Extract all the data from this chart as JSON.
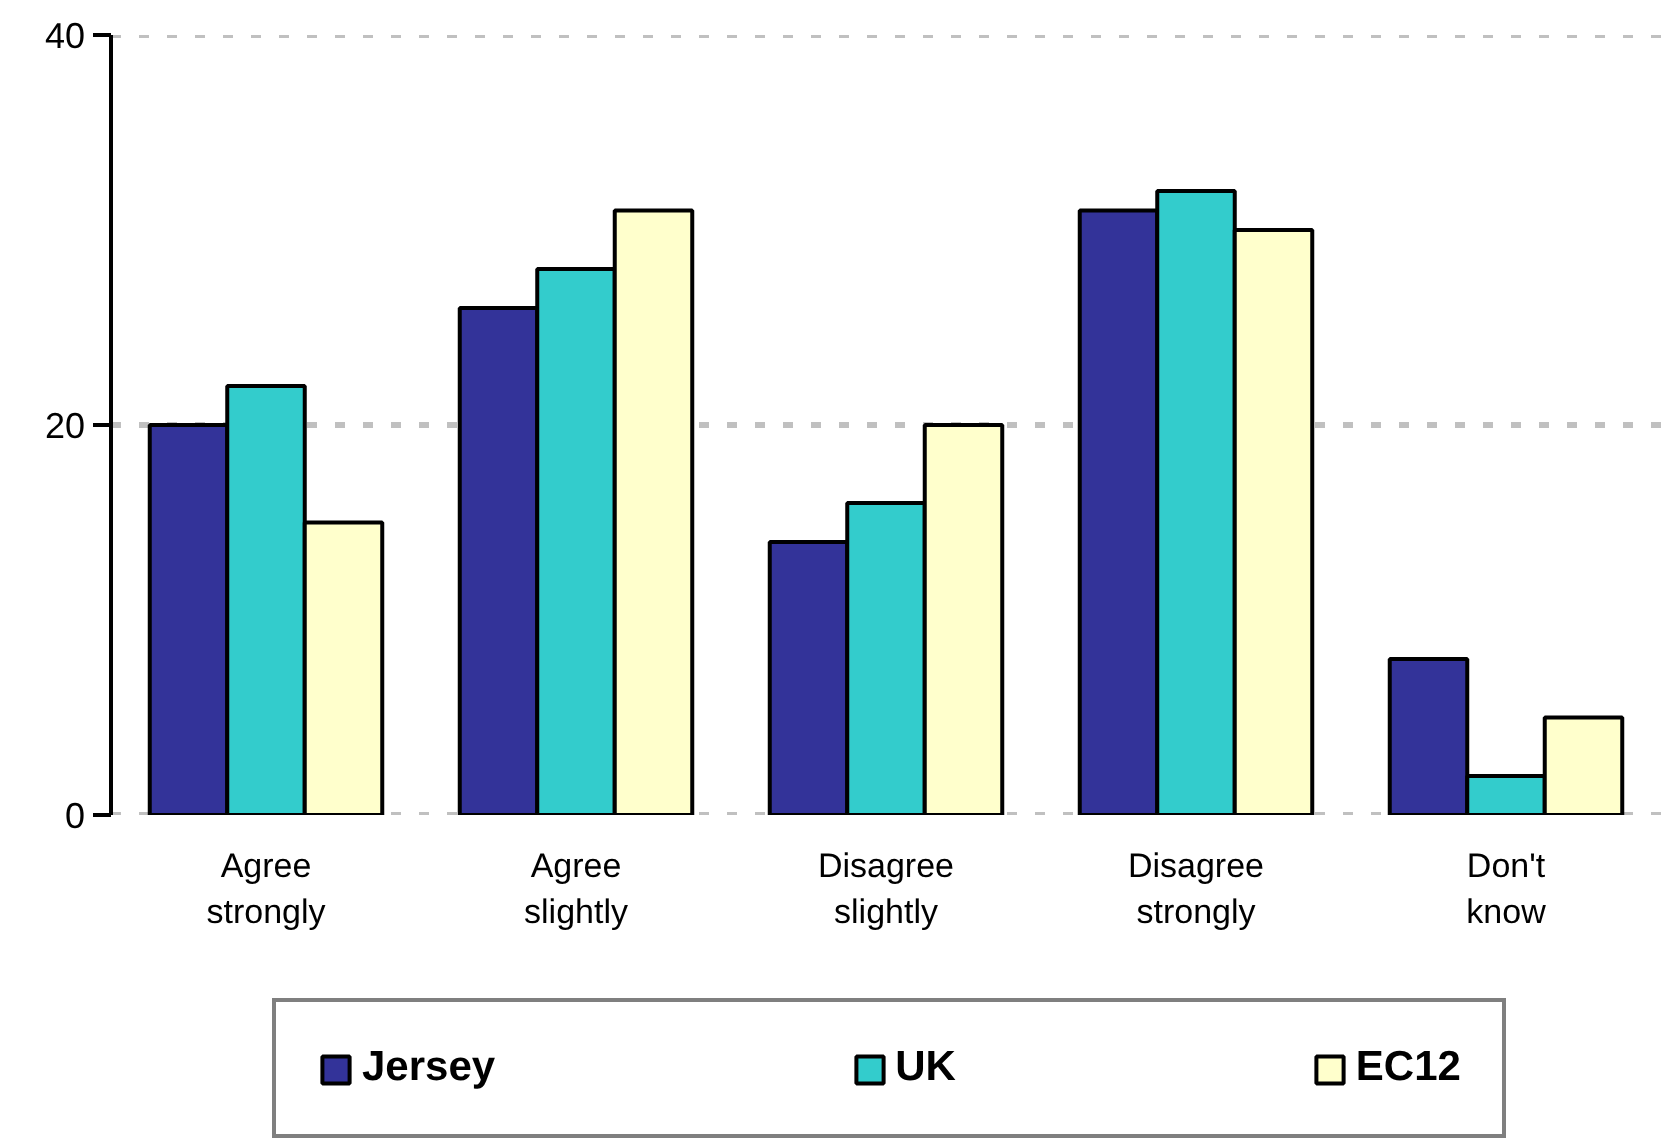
{
  "chart_data": {
    "type": "bar",
    "categories": [
      "Agree strongly",
      "Agree slightly",
      "Disagree slightly",
      "Disagree strongly",
      "Don't know"
    ],
    "series": [
      {
        "name": "Jersey",
        "color": "#333399",
        "values": [
          20,
          26,
          14,
          31,
          8
        ]
      },
      {
        "name": "UK",
        "color": "#33cccc",
        "values": [
          22,
          28,
          16,
          32,
          2
        ]
      },
      {
        "name": "EC12",
        "color": "#ffffcc",
        "values": [
          15,
          31,
          20,
          30,
          5
        ]
      }
    ],
    "ylim": [
      0,
      40
    ],
    "yticks": [
      0,
      20,
      40
    ],
    "grid": "y",
    "legend": "bottom"
  }
}
